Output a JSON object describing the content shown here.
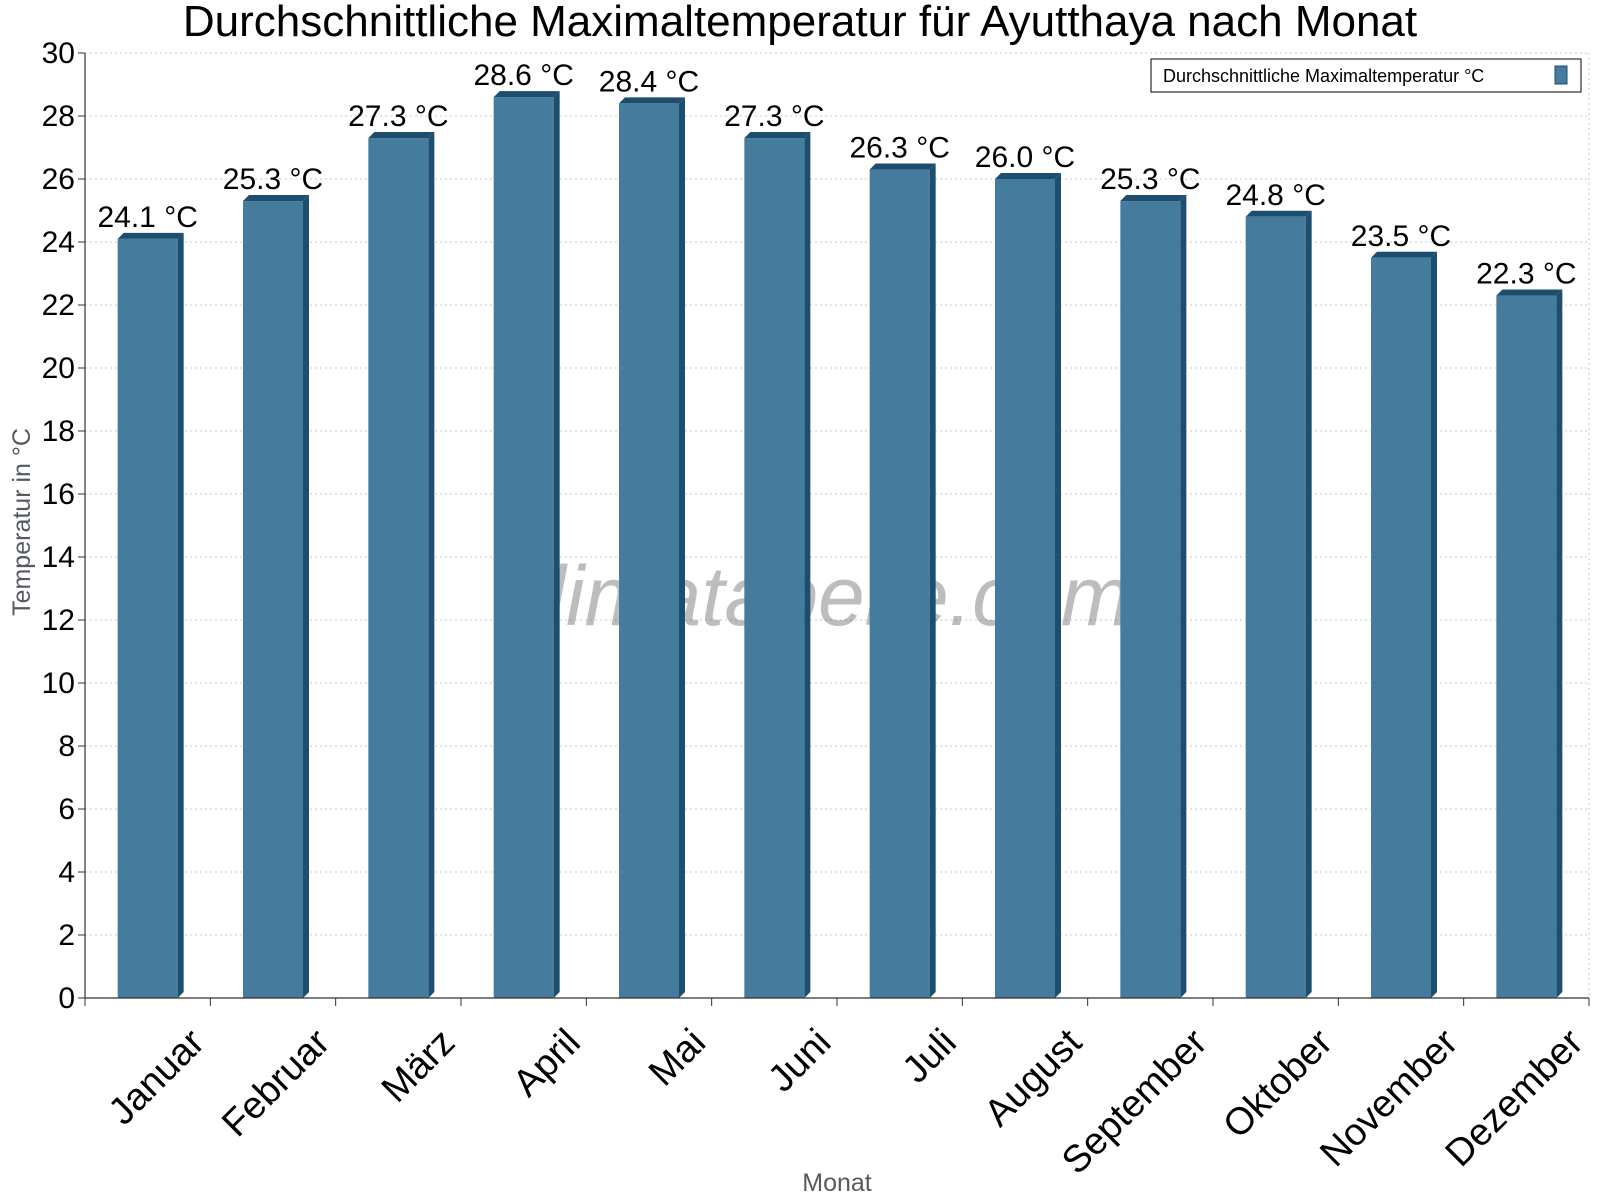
{
  "chart_data": {
    "type": "bar",
    "title": "Durchschnittliche Maximaltemperatur für Ayutthaya nach Monat",
    "xlabel": "Monat",
    "ylabel": "Temperatur in °C",
    "categories": [
      "Januar",
      "Februar",
      "März",
      "April",
      "Mai",
      "Juni",
      "Juli",
      "August",
      "September",
      "Oktober",
      "November",
      "Dezember"
    ],
    "series": [
      {
        "name": "Durchschnittliche Maximaltemperatur °C",
        "values": [
          24.1,
          25.3,
          27.3,
          28.6,
          28.4,
          27.3,
          26.3,
          26.0,
          25.3,
          24.8,
          23.5,
          22.3
        ],
        "labels": [
          "24.1 °C",
          "25.3 °C",
          "27.3 °C",
          "28.6 °C",
          "28.4 °C",
          "27.3 °C",
          "26.3 °C",
          "26.0 °C",
          "25.3 °C",
          "24.8 °C",
          "23.5 °C",
          "22.3 °C"
        ]
      }
    ],
    "ylim": [
      0,
      30
    ],
    "yticks": [
      "0",
      "2",
      "4",
      "6",
      "8",
      "10",
      "12",
      "14",
      "16",
      "18",
      "20",
      "22",
      "24",
      "26",
      "28",
      "30"
    ],
    "grid": true,
    "legend_position": "top-right",
    "watermark": "klimatabelle.com",
    "colors": {
      "bar": "#457b9d",
      "bar_side": "#1d4e6e",
      "bar_top": "#1d4e6e",
      "grid": "#c8c8c8",
      "axis": "#333333"
    }
  }
}
